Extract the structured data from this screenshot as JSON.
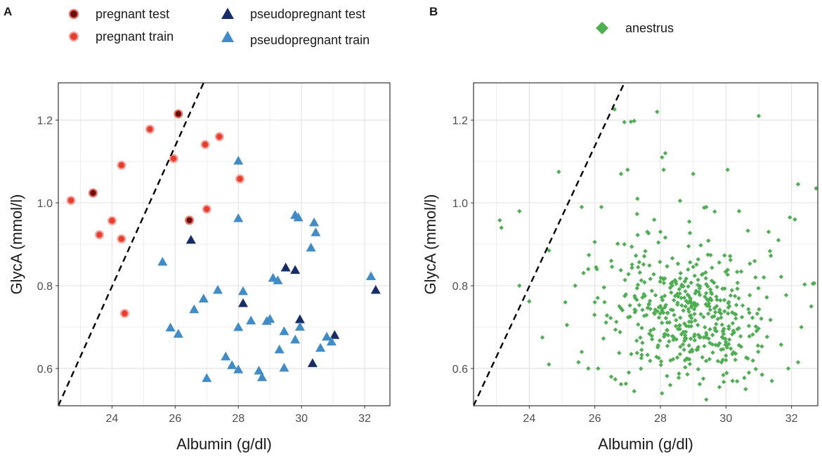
{
  "colors": {
    "pregnant_test_fill": "#6b0d0d",
    "pregnant_test_stroke": "#f26b5b",
    "pregnant_train_fill": "#ea3b2b",
    "pregnant_train_stroke": "#f7a198",
    "pseudo_test": "#152e6a",
    "pseudo_train": "#3f8ccb",
    "anestrus": "#4caf50",
    "grid": "#e6e6e6",
    "panel_border": "#333333",
    "diagonal": "#000000"
  },
  "chart_data": [
    {
      "panel": "A",
      "type": "scatter",
      "xlabel": "Albumin (g/dl)",
      "ylabel": "GlycA (mmol/l)",
      "xlim": [
        22.3,
        32.8
      ],
      "ylim": [
        0.51,
        1.29
      ],
      "xticks": [
        24,
        26,
        28,
        30,
        32
      ],
      "xtick_labels": [
        "24",
        "26",
        "28",
        "30",
        "32"
      ],
      "yticks": [
        0.6,
        0.8,
        1.0,
        1.2
      ],
      "ytick_labels": [
        "0.6",
        "0.8",
        "1.0",
        "1.2"
      ],
      "diagonal_line": {
        "style": "dashed",
        "from": [
          22.3,
          0.51
        ],
        "to": [
          26.9,
          1.29
        ]
      },
      "legend_position": "top",
      "series": [
        {
          "name": "pregnant test",
          "marker": "circle",
          "points": [
            [
              23.4,
              1.024
            ],
            [
              26.1,
              1.215
            ],
            [
              26.45,
              0.958
            ]
          ]
        },
        {
          "name": "pregnant train",
          "marker": "circle",
          "points": [
            [
              22.7,
              1.006
            ],
            [
              23.6,
              0.923
            ],
            [
              24.0,
              0.957
            ],
            [
              24.3,
              1.091
            ],
            [
              24.3,
              0.913
            ],
            [
              24.4,
              0.733
            ],
            [
              25.2,
              1.178
            ],
            [
              25.95,
              1.107
            ],
            [
              26.95,
              1.141
            ],
            [
              27.0,
              0.985
            ],
            [
              27.4,
              1.16
            ],
            [
              28.05,
              1.058
            ]
          ]
        },
        {
          "name": "pseudopregnant test",
          "marker": "triangle",
          "points": [
            [
              26.5,
              0.91
            ],
            [
              28.15,
              0.757
            ],
            [
              29.5,
              0.843
            ],
            [
              29.8,
              0.837
            ],
            [
              29.95,
              0.718
            ],
            [
              30.35,
              0.612
            ],
            [
              31.05,
              0.68
            ],
            [
              32.35,
              0.789
            ]
          ]
        },
        {
          "name": "pseudopregnant train",
          "marker": "triangle",
          "points": [
            [
              25.6,
              0.857
            ],
            [
              25.85,
              0.698
            ],
            [
              26.1,
              0.683
            ],
            [
              26.6,
              0.742
            ],
            [
              26.9,
              0.768
            ],
            [
              27.0,
              0.576
            ],
            [
              27.35,
              0.789
            ],
            [
              27.6,
              0.628
            ],
            [
              27.8,
              0.607
            ],
            [
              28.0,
              0.699
            ],
            [
              28.0,
              0.597
            ],
            [
              28.0,
              1.101
            ],
            [
              28.0,
              0.962
            ],
            [
              28.15,
              0.786
            ],
            [
              28.4,
              0.715
            ],
            [
              28.65,
              0.594
            ],
            [
              28.75,
              0.578
            ],
            [
              28.9,
              0.714
            ],
            [
              29.0,
              0.719
            ],
            [
              29.1,
              0.818
            ],
            [
              29.25,
              0.812
            ],
            [
              29.3,
              0.645
            ],
            [
              29.45,
              0.689
            ],
            [
              29.45,
              0.601
            ],
            [
              29.8,
              0.97
            ],
            [
              29.8,
              0.669
            ],
            [
              29.9,
              0.964
            ],
            [
              29.95,
              0.7
            ],
            [
              30.3,
              0.891
            ],
            [
              30.4,
              0.952
            ],
            [
              30.45,
              0.928
            ],
            [
              30.6,
              0.649
            ],
            [
              30.8,
              0.676
            ],
            [
              30.95,
              0.664
            ],
            [
              32.2,
              0.822
            ]
          ]
        }
      ]
    },
    {
      "panel": "B",
      "type": "scatter",
      "xlabel": "Albumin (g/dl)",
      "ylabel": "GlycA (mmol/l)",
      "xlim": [
        22.3,
        32.8
      ],
      "ylim": [
        0.51,
        1.29
      ],
      "xticks": [
        24,
        26,
        28,
        30,
        32
      ],
      "xtick_labels": [
        "24",
        "26",
        "28",
        "30",
        "32"
      ],
      "yticks": [
        0.6,
        0.8,
        1.0,
        1.2
      ],
      "ytick_labels": [
        "0.6",
        "0.8",
        "1.0",
        "1.2"
      ],
      "diagonal_line": {
        "style": "dashed",
        "from": [
          22.3,
          0.51
        ],
        "to": [
          26.9,
          1.29
        ]
      },
      "legend_position": "top",
      "series": [
        {
          "name": "anestrus",
          "marker": "diamond",
          "n_points": 520,
          "points": [
            [
              23.1,
              0.958
            ],
            [
              23.15,
              0.94
            ],
            [
              23.7,
              0.98
            ],
            [
              23.7,
              0.8
            ],
            [
              24.6,
              0.885
            ],
            [
              24.9,
              1.075
            ],
            [
              25.6,
              0.99
            ],
            [
              26.0,
              0.76
            ],
            [
              26.2,
              0.99
            ],
            [
              26.6,
              1.226
            ],
            [
              26.8,
              1.07
            ],
            [
              26.9,
              1.195
            ],
            [
              27.0,
              1.08
            ],
            [
              27.1,
              1.196
            ],
            [
              27.2,
              1.198
            ],
            [
              27.3,
              1.01
            ],
            [
              27.9,
              1.22
            ],
            [
              28.05,
              1.11
            ],
            [
              28.15,
              1.12
            ],
            [
              28.1,
              1.08
            ],
            [
              29.0,
              1.07
            ],
            [
              30.05,
              1.08
            ],
            [
              31.0,
              1.21
            ],
            [
              31.95,
              0.965
            ],
            [
              32.2,
              1.045
            ],
            [
              32.75,
              1.035
            ],
            [
              32.65,
              0.805
            ],
            [
              32.4,
              0.803
            ],
            [
              32.2,
              0.615
            ],
            [
              31.9,
              0.6
            ],
            [
              24.0,
              0.762
            ],
            [
              24.4,
              0.675
            ],
            [
              24.6,
              0.61
            ],
            [
              25.5,
              0.615
            ],
            [
              25.15,
              0.705
            ],
            [
              25.8,
              0.6
            ],
            [
              26.8,
              0.562
            ],
            [
              27.2,
              0.545
            ],
            [
              28.05,
              0.54
            ],
            [
              29.4,
              0.525
            ],
            [
              29.8,
              0.555
            ],
            [
              30.6,
              0.55
            ],
            [
              31.4,
              0.57
            ],
            [
              31.1,
              0.585
            ],
            [
              30.9,
              0.82
            ],
            [
              31.6,
              0.91
            ],
            [
              32.1,
              0.96
            ],
            [
              31.3,
              0.93
            ],
            [
              32.3,
              0.7
            ],
            [
              32.6,
              0.75
            ],
            [
              30.4,
              0.98
            ],
            [
              29.4,
              0.99
            ],
            [
              28.6,
              1.005
            ],
            [
              28.0,
              0.93
            ],
            [
              27.6,
              0.93
            ],
            [
              26.9,
              0.9
            ],
            [
              26.5,
              0.86
            ],
            [
              25.8,
              0.84
            ],
            [
              25.4,
              0.8
            ],
            [
              25.1,
              0.76
            ],
            [
              25.6,
              0.64
            ],
            [
              26.1,
              0.6
            ],
            [
              26.5,
              0.58
            ],
            [
              28.3,
              0.56
            ],
            [
              30.2,
              0.57
            ],
            [
              30.7,
              0.59
            ]
          ],
          "cluster": {
            "center_x": 28.9,
            "center_y": 0.74,
            "sd_x": 1.2,
            "sd_y": 0.085
          }
        }
      ]
    }
  ],
  "legend": {
    "A": {
      "panel_label": "A",
      "items": [
        {
          "label": "pregnant test",
          "marker": "circle-dark"
        },
        {
          "label": "pregnant train",
          "marker": "circle-red"
        },
        {
          "label": "pseudopregnant test",
          "marker": "triangle-dark"
        },
        {
          "label": "pseudopregnant train",
          "marker": "triangle-light"
        }
      ]
    },
    "B": {
      "panel_label": "B",
      "items": [
        {
          "label": "anestrus",
          "marker": "diamond-green"
        }
      ]
    }
  }
}
